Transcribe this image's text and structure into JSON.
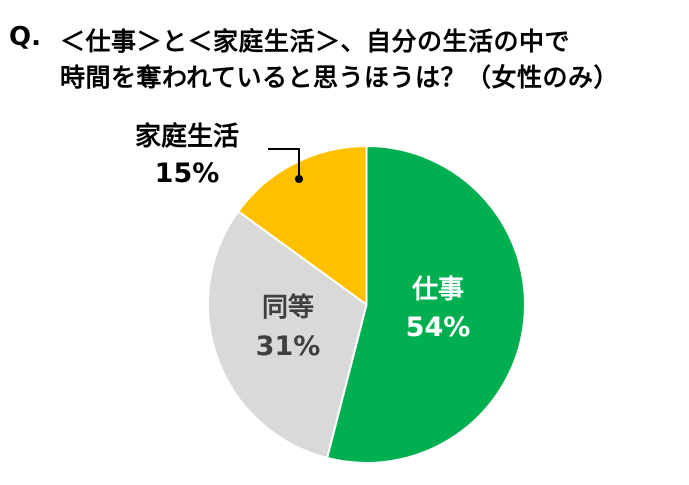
{
  "title": {
    "prefix": "Q.",
    "line1": "＜仕事＞と＜家庭生活＞、自分の生活の中で",
    "line2": "時間を奪われていると思うほうは？（女性のみ）"
  },
  "colors": {
    "work": "#00B050",
    "equal": "#D9D9D9",
    "home": "#FFC000",
    "slice_border": "#FFFFFF"
  },
  "labels": {
    "work": {
      "name": "仕事",
      "pct": "54%"
    },
    "equal": {
      "name": "同等",
      "pct": "31%"
    },
    "home": {
      "name": "家庭生活",
      "pct": "15%"
    }
  },
  "chart_data": {
    "type": "pie",
    "title": "Q. ＜仕事＞と＜家庭生活＞、自分の生活の中で時間を奪われていると思うほうは？（女性のみ）",
    "categories": [
      "仕事",
      "同等",
      "家庭生活"
    ],
    "values": [
      54,
      31,
      15
    ],
    "unit": "%",
    "colors": [
      "#00B050",
      "#D9D9D9",
      "#FFC000"
    ],
    "start_angle": "12 o'clock",
    "direction": "clockwise",
    "legend": "none (data labels on/next to slices)",
    "annotations": [
      "家庭生活 label uses a leader line callout"
    ]
  }
}
